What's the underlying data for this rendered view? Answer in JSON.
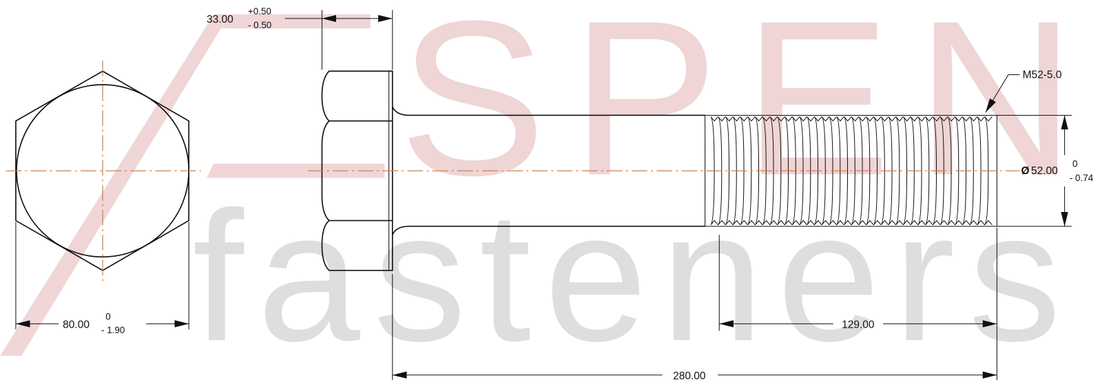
{
  "watermark": {
    "brand": "SPEN",
    "subtitle": "fasteners"
  },
  "dimensions": {
    "head_height": {
      "value": "33.00",
      "upper": "+0.50",
      "lower": "- 0.50"
    },
    "thread": {
      "label": "M52-5.0"
    },
    "diameter": {
      "symbol": "Ø",
      "value": "52.00",
      "upper": "0",
      "lower": "- 0.74"
    },
    "across_flats": {
      "value": "80.00",
      "upper": "0",
      "lower": "- 1.90"
    },
    "thread_length": {
      "value": "129.00"
    },
    "length": {
      "value": "280.00"
    }
  }
}
